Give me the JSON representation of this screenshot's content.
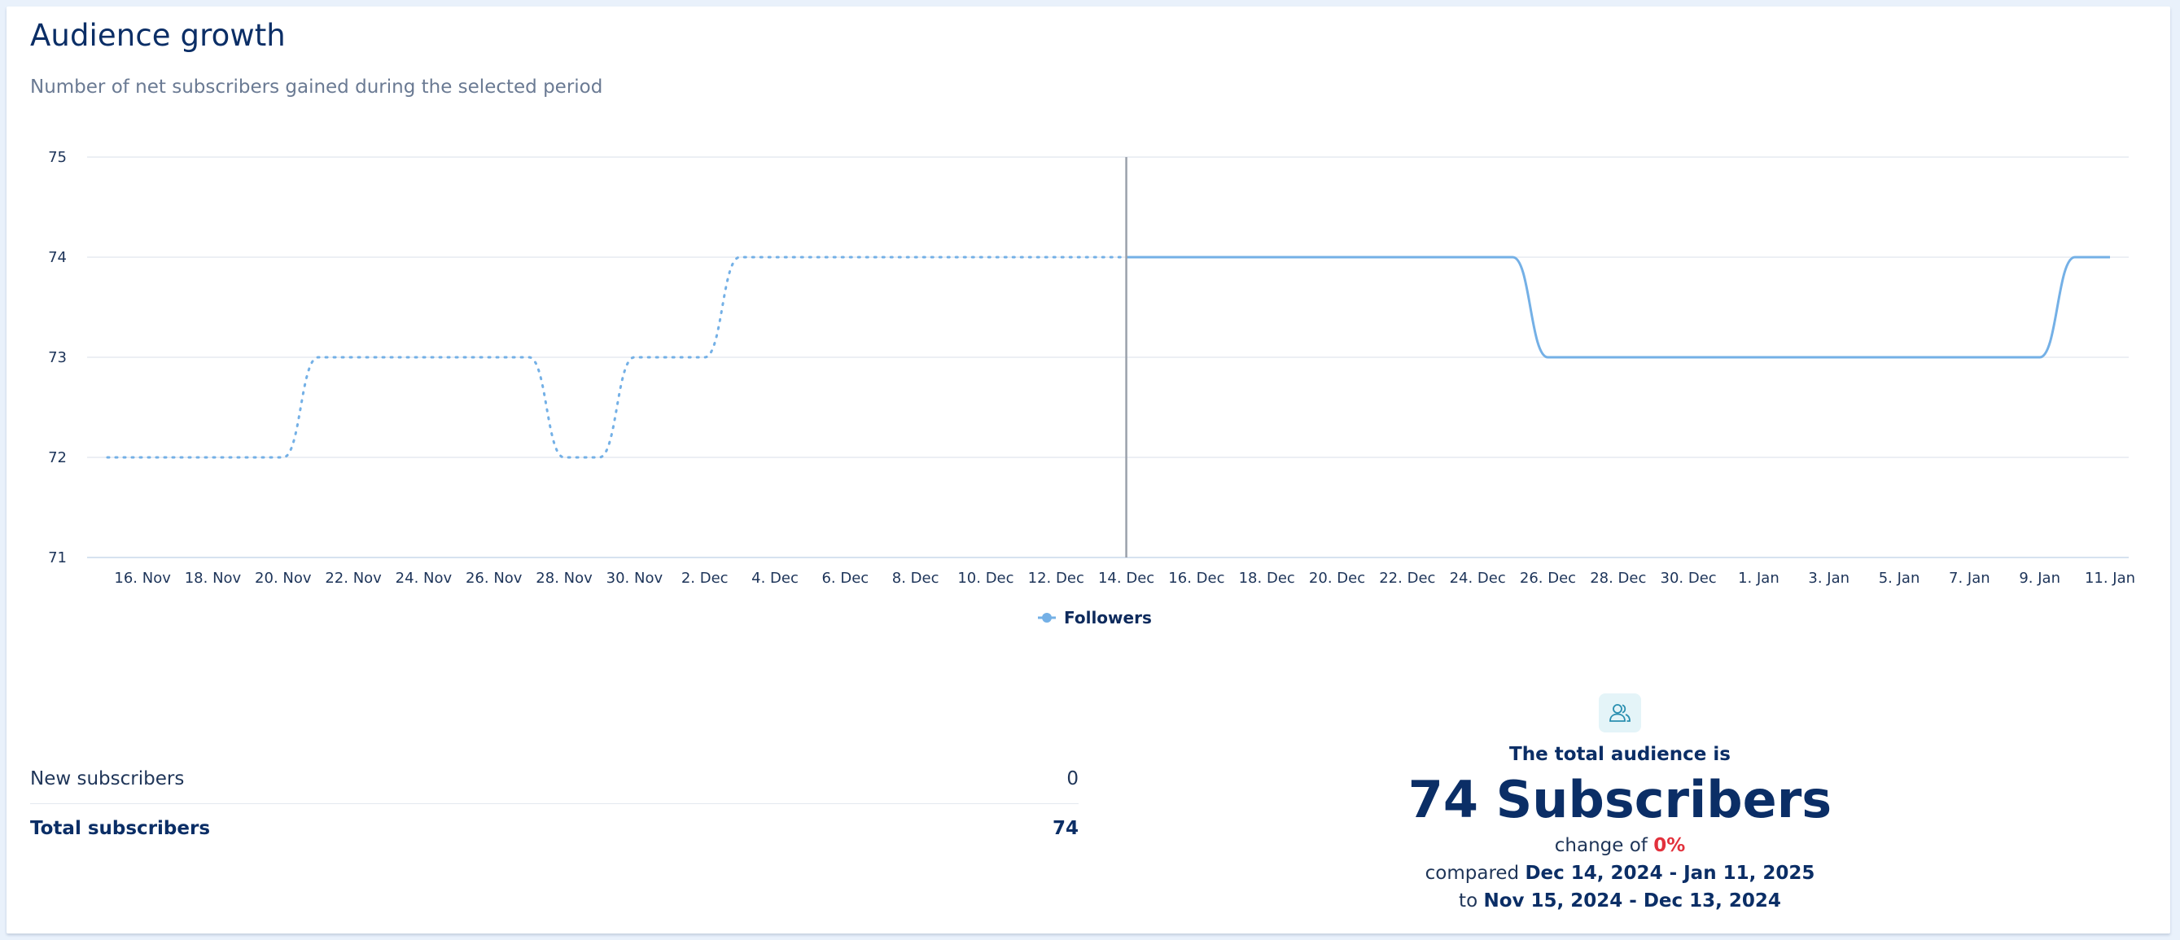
{
  "card": {
    "title": "Audience growth",
    "subtitle": "Number of net subscribers gained during the selected period"
  },
  "chart_data": {
    "type": "line",
    "y_ticks": [
      "75",
      "74",
      "73",
      "72",
      "71"
    ],
    "ylim": [
      71,
      75
    ],
    "x_tick_labels": [
      "16. Nov",
      "18. Nov",
      "20. Nov",
      "22. Nov",
      "24. Nov",
      "26. Nov",
      "28. Nov",
      "30. Nov",
      "2. Dec",
      "4. Dec",
      "6. Dec",
      "8. Dec",
      "10. Dec",
      "12. Dec",
      "14. Dec",
      "16. Dec",
      "18. Dec",
      "20. Dec",
      "22. Dec",
      "24. Dec",
      "26. Dec",
      "28. Dec",
      "30. Dec",
      "1. Jan",
      "3. Jan",
      "5. Jan",
      "7. Jan",
      "9. Jan",
      "11. Jan"
    ],
    "xlim": [
      "2024-11-15",
      "2025-01-11"
    ],
    "divider_date": "2024-12-14",
    "legend": {
      "label": "Followers",
      "placement": "bottom-center"
    },
    "line_color": "#74b0e6",
    "grid": true,
    "series": [
      {
        "name": "Followers",
        "style": "dotted",
        "points": [
          [
            "2024-11-15",
            72
          ],
          [
            "2024-11-20",
            72
          ],
          [
            "2024-11-21",
            73
          ],
          [
            "2024-11-26",
            73
          ],
          [
            "2024-11-27",
            73
          ],
          [
            "2024-11-28",
            72
          ],
          [
            "2024-11-29",
            72
          ],
          [
            "2024-11-30",
            73
          ],
          [
            "2024-12-02",
            73
          ],
          [
            "2024-12-03",
            74
          ],
          [
            "2024-12-13",
            74
          ],
          [
            "2024-12-14",
            74
          ]
        ]
      },
      {
        "name": "Followers",
        "style": "solid",
        "points": [
          [
            "2024-12-14",
            74
          ],
          [
            "2024-12-25",
            74
          ],
          [
            "2024-12-26",
            73
          ],
          [
            "2025-01-09",
            73
          ],
          [
            "2025-01-10",
            74
          ],
          [
            "2025-01-11",
            74
          ]
        ]
      }
    ]
  },
  "stats": {
    "new_label": "New subscribers",
    "new_value": "0",
    "total_label": "Total subscribers",
    "total_value": "74"
  },
  "summary": {
    "lead": "The total audience is",
    "headline": "74 Subscribers",
    "change_prefix": "change of",
    "change_value": "0%",
    "compared_prefix": "compared",
    "compared_range": "Dec 14, 2024 - Jan 11, 2025",
    "to_prefix": "to",
    "to_range": "Nov 15, 2024 - Dec 13, 2024",
    "accent_color": "#e2313c"
  }
}
